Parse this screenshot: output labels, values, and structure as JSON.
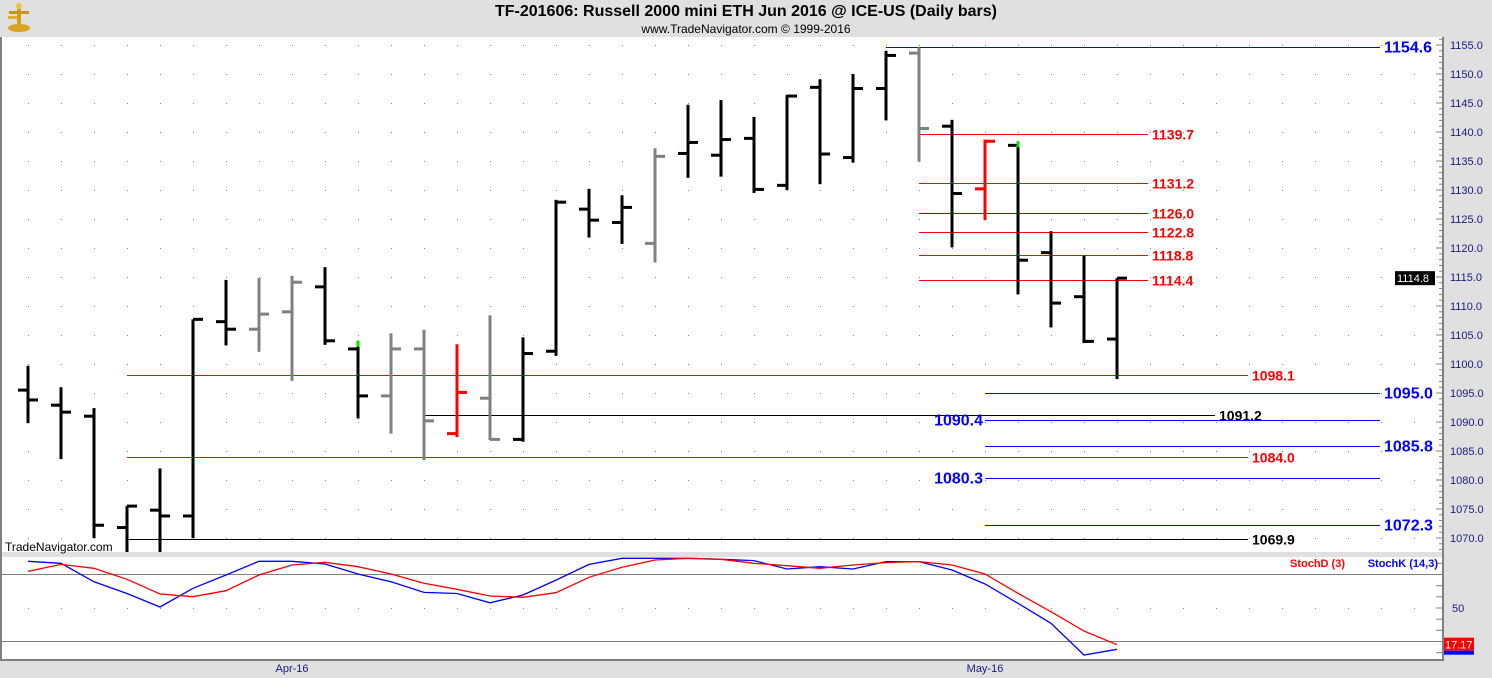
{
  "header": {
    "title": "TF-201606:  Russell 2000 mini ETH Jun 2016 @ ICE-US  (Daily bars)",
    "subtitle": "www.TradeNavigator.com © 1999-2016",
    "logo_icon": "gold-anchor-logo-icon"
  },
  "watermark": "TradeNavigator.com",
  "colors": {
    "up": "#000000",
    "neutral": "#808080",
    "down_red": "#ff0000",
    "blue": "#0000ff",
    "red": "#ff0000",
    "green": "#00e000",
    "background": "#ffffff",
    "frame": "#e0e0e0"
  },
  "chart_data": [
    {
      "type": "ohlc",
      "panel": "price",
      "title": "TF-201606:  Russell 2000 mini ETH Jun 2016 @ ICE-US  (Daily bars)",
      "ylim": [
        1067,
        1156
      ],
      "y_ticks": [
        "1155.0",
        "1150.0",
        "1145.0",
        "1140.0",
        "1135.0",
        "1130.0",
        "1125.0",
        "1120.0",
        "1115.0",
        "1110.0",
        "1105.0",
        "1100.0",
        "1095.0",
        "1090.0",
        "1085.0",
        "1080.0",
        "1075.0",
        "1070.0"
      ],
      "x_tick_labels": [
        {
          "index": 8,
          "label": "Apr-16"
        },
        {
          "index": 29,
          "label": "May-16"
        }
      ],
      "grid": "dotted",
      "last_price": "1114.8",
      "bars": [
        {
          "o": 1095.5,
          "h": 1099.7,
          "l": 1089.8,
          "c": 1093.8,
          "color": "black"
        },
        {
          "o": 1092.9,
          "h": 1096.0,
          "l": 1083.6,
          "c": 1091.7,
          "color": "black"
        },
        {
          "o": 1091.0,
          "h": 1092.4,
          "l": 1070.0,
          "c": 1072.2,
          "color": "black"
        },
        {
          "o": 1071.8,
          "h": 1075.5,
          "l": 1067.0,
          "c": 1075.5,
          "color": "black"
        },
        {
          "o": 1074.8,
          "h": 1082.0,
          "l": 1067.0,
          "c": 1073.8,
          "color": "black"
        },
        {
          "o": 1073.8,
          "h": 1107.7,
          "l": 1070.0,
          "c": 1107.7,
          "color": "black"
        },
        {
          "o": 1107.3,
          "h": 1114.5,
          "l": 1103.2,
          "c": 1106.0,
          "color": "black"
        },
        {
          "o": 1106.0,
          "h": 1114.8,
          "l": 1102.1,
          "c": 1108.6,
          "color": "gray"
        },
        {
          "o": 1109.0,
          "h": 1115.2,
          "l": 1097.1,
          "c": 1114.1,
          "color": "gray"
        },
        {
          "o": 1113.3,
          "h": 1116.7,
          "l": 1103.3,
          "c": 1104.0,
          "color": "black"
        },
        {
          "o": 1102.6,
          "h": 1104.0,
          "l": 1090.6,
          "c": 1094.5,
          "color": "black",
          "tip": "green"
        },
        {
          "o": 1094.5,
          "h": 1105.3,
          "l": 1088.0,
          "c": 1102.6,
          "color": "gray"
        },
        {
          "o": 1102.6,
          "h": 1105.9,
          "l": 1083.4,
          "c": 1090.2,
          "color": "gray"
        },
        {
          "o": 1088.0,
          "h": 1103.4,
          "l": 1087.4,
          "c": 1095.1,
          "color": "red"
        },
        {
          "o": 1094.1,
          "h": 1108.4,
          "l": 1086.9,
          "c": 1087.0,
          "color": "gray"
        },
        {
          "o": 1087.0,
          "h": 1104.6,
          "l": 1086.6,
          "c": 1101.8,
          "color": "black"
        },
        {
          "o": 1102.2,
          "h": 1128.3,
          "l": 1101.4,
          "c": 1127.9,
          "color": "black"
        },
        {
          "o": 1126.7,
          "h": 1130.2,
          "l": 1121.8,
          "c": 1124.8,
          "color": "black"
        },
        {
          "o": 1124.4,
          "h": 1129.1,
          "l": 1120.7,
          "c": 1127.0,
          "color": "black"
        },
        {
          "o": 1120.8,
          "h": 1137.2,
          "l": 1117.5,
          "c": 1135.8,
          "color": "gray"
        },
        {
          "o": 1136.3,
          "h": 1144.7,
          "l": 1132.1,
          "c": 1138.2,
          "color": "black"
        },
        {
          "o": 1136.0,
          "h": 1145.5,
          "l": 1132.3,
          "c": 1138.7,
          "color": "black"
        },
        {
          "o": 1138.9,
          "h": 1142.6,
          "l": 1129.5,
          "c": 1130.1,
          "color": "black"
        },
        {
          "o": 1130.8,
          "h": 1146.4,
          "l": 1130.0,
          "c": 1146.2,
          "color": "black"
        },
        {
          "o": 1147.7,
          "h": 1149.1,
          "l": 1131.0,
          "c": 1136.2,
          "color": "black"
        },
        {
          "o": 1135.6,
          "h": 1150.0,
          "l": 1134.7,
          "c": 1147.5,
          "color": "black"
        },
        {
          "o": 1147.5,
          "h": 1154.0,
          "l": 1142.0,
          "c": 1153.2,
          "color": "black"
        },
        {
          "o": 1153.6,
          "h": 1154.6,
          "l": 1134.9,
          "c": 1140.6,
          "color": "gray"
        },
        {
          "o": 1141.0,
          "h": 1142.1,
          "l": 1120.1,
          "c": 1129.4,
          "color": "black"
        },
        {
          "o": 1130.2,
          "h": 1138.7,
          "l": 1124.8,
          "c": 1138.4,
          "color": "red"
        },
        {
          "o": 1137.7,
          "h": 1138.4,
          "l": 1112.0,
          "c": 1117.9,
          "color": "black",
          "tip": "green"
        },
        {
          "o": 1119.2,
          "h": 1122.9,
          "l": 1106.3,
          "c": 1110.5,
          "color": "black"
        },
        {
          "o": 1111.6,
          "h": 1118.7,
          "l": 1103.6,
          "c": 1103.9,
          "color": "black"
        },
        {
          "o": 1104.3,
          "h": 1114.8,
          "l": 1097.4,
          "c": 1114.8,
          "color": "black"
        }
      ],
      "levels": [
        {
          "value": 1154.6,
          "label": "1154.6",
          "line": "blue",
          "text": "blue",
          "side": "right",
          "size": "large"
        },
        {
          "value": 1139.7,
          "label": "1139.7",
          "line": "red",
          "text": "red",
          "side": "right",
          "size": "medium"
        },
        {
          "value": 1131.2,
          "label": "1131.2",
          "line": "red",
          "text": "red",
          "side": "right",
          "size": "medium"
        },
        {
          "value": 1126.0,
          "label": "1126.0",
          "line": "darkred",
          "text": "red",
          "side": "right",
          "size": "medium"
        },
        {
          "value": 1122.8,
          "label": "1122.8",
          "line": "red",
          "text": "red",
          "side": "right",
          "size": "medium"
        },
        {
          "value": 1118.8,
          "label": "1118.8",
          "line": "red",
          "text": "red",
          "side": "right",
          "size": "medium"
        },
        {
          "value": 1114.4,
          "label": "1114.4",
          "line": "red",
          "text": "red",
          "side": "right",
          "size": "medium"
        },
        {
          "value": 1098.1,
          "label": "1098.1",
          "line": "red",
          "text": "red",
          "side": "right",
          "size": "medium"
        },
        {
          "value": 1095.0,
          "label": "1095.0",
          "line": "blue",
          "text": "blue",
          "side": "right",
          "size": "large"
        },
        {
          "value": 1091.2,
          "label": "1091.2",
          "line": "black",
          "text": "black",
          "side": "right",
          "size": "medium"
        },
        {
          "value": 1090.4,
          "label": "1090.4",
          "line": "blue",
          "text": "blue",
          "side": "left",
          "size": "large"
        },
        {
          "value": 1085.8,
          "label": "1085.8",
          "line": "blue",
          "text": "blue",
          "side": "right",
          "size": "large"
        },
        {
          "value": 1084.0,
          "label": "1084.0",
          "line": "red",
          "text": "red",
          "side": "right",
          "size": "medium"
        },
        {
          "value": 1080.3,
          "label": "1080.3",
          "line": "blue",
          "text": "blue",
          "side": "left",
          "size": "large"
        },
        {
          "value": 1072.3,
          "label": "1072.3",
          "line": "blue",
          "text": "blue",
          "side": "right",
          "size": "large"
        },
        {
          "value": 1069.9,
          "label": "1069.9",
          "line": "black",
          "text": "black",
          "side": "right",
          "size": "medium"
        }
      ]
    },
    {
      "type": "line",
      "panel": "stochastic",
      "ylim": [
        0,
        100
      ],
      "y_ticks": [
        "50"
      ],
      "reference_lines": [
        80,
        20
      ],
      "series": [
        {
          "name": "StochD (3)",
          "color": "#ff0000",
          "last": "17.17",
          "values": [
            82.8,
            89,
            85.5,
            75.7,
            62.5,
            60.1,
            65.5,
            79.5,
            88.5,
            90.9,
            87,
            80.4,
            72.1,
            66.7,
            60.7,
            59.6,
            63.7,
            77.5,
            86.4,
            93,
            94.5,
            93.6,
            90,
            87.9,
            85.5,
            88.5,
            90.6,
            91.5,
            88.5,
            80.4,
            63.2,
            46.7,
            29.4,
            17.17
          ]
        },
        {
          "name": "StochK (14,3)",
          "color": "#0000ff",
          "values": [
            91.8,
            90,
            73.5,
            63,
            50.9,
            67.6,
            79.5,
            91.8,
            91.8,
            89.4,
            80.4,
            73.5,
            64,
            63,
            54.7,
            61.6,
            75,
            89,
            94.5,
            94.5,
            94.5,
            93.6,
            92.4,
            84.9,
            87,
            84.9,
            91.5,
            91.5,
            84,
            71.5,
            54.2,
            36.3,
            7.9,
            13
          ]
        }
      ]
    }
  ]
}
